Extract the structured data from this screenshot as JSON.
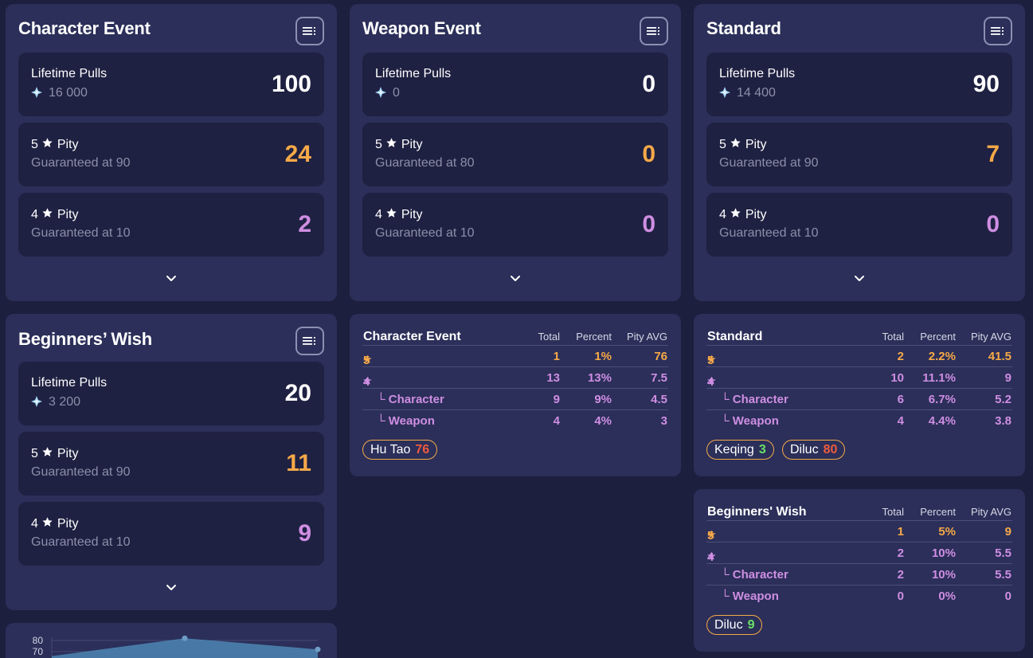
{
  "banners": [
    {
      "title": "Character Event",
      "lifetime_label": "Lifetime Pulls",
      "lifetime_primogems": "16 000",
      "lifetime_value": "100",
      "five_label": "5",
      "five_suffix": "Pity",
      "five_sub": "Guaranteed at 90",
      "five_value": "24",
      "four_label": "4",
      "four_suffix": "Pity",
      "four_sub": "Guaranteed at 10",
      "four_value": "2"
    },
    {
      "title": "Weapon Event",
      "lifetime_label": "Lifetime Pulls",
      "lifetime_primogems": "0",
      "lifetime_value": "0",
      "five_label": "5",
      "five_suffix": "Pity",
      "five_sub": "Guaranteed at 80",
      "five_value": "0",
      "four_label": "4",
      "four_suffix": "Pity",
      "four_sub": "Guaranteed at 10",
      "four_value": "0"
    },
    {
      "title": "Standard",
      "lifetime_label": "Lifetime Pulls",
      "lifetime_primogems": "14 400",
      "lifetime_value": "90",
      "five_label": "5",
      "five_suffix": "Pity",
      "five_sub": "Guaranteed at 90",
      "five_value": "7",
      "four_label": "4",
      "four_suffix": "Pity",
      "four_sub": "Guaranteed at 10",
      "four_value": "0"
    },
    {
      "title": "Beginners’ Wish",
      "lifetime_label": "Lifetime Pulls",
      "lifetime_primogems": "3 200",
      "lifetime_value": "20",
      "five_label": "5",
      "five_suffix": "Pity",
      "five_sub": "Guaranteed at 90",
      "five_value": "11",
      "four_label": "4",
      "four_suffix": "Pity",
      "four_sub": "Guaranteed at 10",
      "four_value": "9"
    }
  ],
  "stats": [
    {
      "name": "Character Event",
      "columns": [
        "Total",
        "Percent",
        "Pity AVG"
      ],
      "rows": [
        {
          "label": "5",
          "total": "1",
          "percent": "1%",
          "pity": "76"
        },
        {
          "label": "4",
          "total": "13",
          "percent": "13%",
          "pity": "7.5"
        },
        {
          "label": "└ Character",
          "total": "9",
          "percent": "9%",
          "pity": "4.5"
        },
        {
          "label": "└ Weapon",
          "total": "4",
          "percent": "4%",
          "pity": "3"
        }
      ],
      "pills": [
        {
          "name": "Hu Tao",
          "pity": "76"
        }
      ]
    },
    {
      "name": "Standard",
      "columns": [
        "Total",
        "Percent",
        "Pity AVG"
      ],
      "rows": [
        {
          "label": "5",
          "total": "2",
          "percent": "2.2%",
          "pity": "41.5"
        },
        {
          "label": "4",
          "total": "10",
          "percent": "11.1%",
          "pity": "9"
        },
        {
          "label": "└ Character",
          "total": "6",
          "percent": "6.7%",
          "pity": "5.2"
        },
        {
          "label": "└ Weapon",
          "total": "4",
          "percent": "4.4%",
          "pity": "3.8"
        }
      ],
      "pills": [
        {
          "name": "Keqing",
          "pity": "3"
        },
        {
          "name": "Diluc",
          "pity": "80"
        }
      ]
    },
    {
      "name": "Beginners' Wish",
      "columns": [
        "Total",
        "Percent",
        "Pity AVG"
      ],
      "rows": [
        {
          "label": "5",
          "total": "1",
          "percent": "5%",
          "pity": "9"
        },
        {
          "label": "4",
          "total": "2",
          "percent": "10%",
          "pity": "5.5"
        },
        {
          "label": "└ Character",
          "total": "2",
          "percent": "10%",
          "pity": "5.5"
        },
        {
          "label": "└ Weapon",
          "total": "0",
          "percent": "0%",
          "pity": "0"
        }
      ],
      "pills": [
        {
          "name": "Diluc",
          "pity": "9"
        }
      ]
    }
  ],
  "chart_data": {
    "type": "area",
    "ytick_labels": [
      "80",
      "70"
    ],
    "x": [
      0,
      1,
      2
    ],
    "values": [
      66,
      82,
      72
    ]
  },
  "colors": {
    "five_star": "#f6a948",
    "four_star": "#cf8ee2",
    "low_pity": "#6be069",
    "high_pity": "#ef5b3e"
  },
  "icons": {
    "menu": "list-icon",
    "primogem": "primogem-icon",
    "star": "star-icon",
    "expand": "chevron-down-icon"
  }
}
